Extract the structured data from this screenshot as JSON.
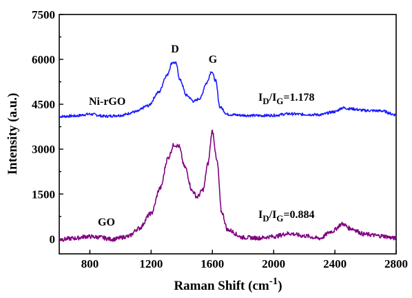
{
  "chart_data": {
    "type": "line",
    "xlabel_main": "Raman Shift (cm",
    "xlabel_sup": "-1",
    "xlabel_end": ")",
    "ylabel": "Intensity (a.u.)",
    "xlim": [
      600,
      2800
    ],
    "ylim": [
      -500,
      7500
    ],
    "x_ticks": [
      800,
      1200,
      1600,
      2000,
      2400,
      2800
    ],
    "y_ticks": [
      0,
      1500,
      3000,
      4500,
      6000,
      7500
    ],
    "grid": false,
    "series": [
      {
        "name": "Ni-rGO",
        "color": "#1a1aff",
        "points": [
          [
            600,
            4090
          ],
          [
            700,
            4110
          ],
          [
            800,
            4170
          ],
          [
            900,
            4100
          ],
          [
            1000,
            4130
          ],
          [
            1100,
            4250
          ],
          [
            1180,
            4450
          ],
          [
            1250,
            4900
          ],
          [
            1300,
            5450
          ],
          [
            1340,
            5900
          ],
          [
            1360,
            5880
          ],
          [
            1390,
            5300
          ],
          [
            1430,
            4800
          ],
          [
            1480,
            4600
          ],
          [
            1520,
            4700
          ],
          [
            1560,
            5200
          ],
          [
            1595,
            5600
          ],
          [
            1620,
            5300
          ],
          [
            1650,
            4400
          ],
          [
            1700,
            4160
          ],
          [
            1800,
            4130
          ],
          [
            1900,
            4120
          ],
          [
            2000,
            4130
          ],
          [
            2100,
            4180
          ],
          [
            2200,
            4160
          ],
          [
            2300,
            4150
          ],
          [
            2400,
            4250
          ],
          [
            2450,
            4380
          ],
          [
            2500,
            4350
          ],
          [
            2600,
            4290
          ],
          [
            2700,
            4280
          ],
          [
            2800,
            4150
          ]
        ]
      },
      {
        "name": "GO",
        "color": "#800080",
        "points": [
          [
            600,
            -20
          ],
          [
            700,
            20
          ],
          [
            780,
            80
          ],
          [
            850,
            60
          ],
          [
            950,
            -10
          ],
          [
            1050,
            80
          ],
          [
            1120,
            350
          ],
          [
            1200,
            850
          ],
          [
            1260,
            1700
          ],
          [
            1310,
            2700
          ],
          [
            1350,
            3150
          ],
          [
            1380,
            3100
          ],
          [
            1420,
            2400
          ],
          [
            1470,
            1600
          ],
          [
            1500,
            1400
          ],
          [
            1540,
            1650
          ],
          [
            1570,
            2500
          ],
          [
            1600,
            3600
          ],
          [
            1630,
            2600
          ],
          [
            1660,
            900
          ],
          [
            1700,
            300
          ],
          [
            1800,
            50
          ],
          [
            1900,
            30
          ],
          [
            2000,
            80
          ],
          [
            2100,
            180
          ],
          [
            2200,
            100
          ],
          [
            2300,
            20
          ],
          [
            2380,
            250
          ],
          [
            2450,
            500
          ],
          [
            2500,
            350
          ],
          [
            2600,
            150
          ],
          [
            2700,
            100
          ],
          [
            2800,
            20
          ]
        ]
      }
    ],
    "annotations": {
      "d_peak": "D",
      "g_peak": "G",
      "series_label_top": "Ni-rGO",
      "series_label_bottom": "GO",
      "ratio_top": {
        "I1": "I",
        "sub1": "D",
        "slash": "/I",
        "sub2": "G",
        "value": "=1.178"
      },
      "ratio_bottom": {
        "I1": "I",
        "sub1": "D",
        "slash": "/I",
        "sub2": "G",
        "value": "=0.884"
      }
    }
  }
}
